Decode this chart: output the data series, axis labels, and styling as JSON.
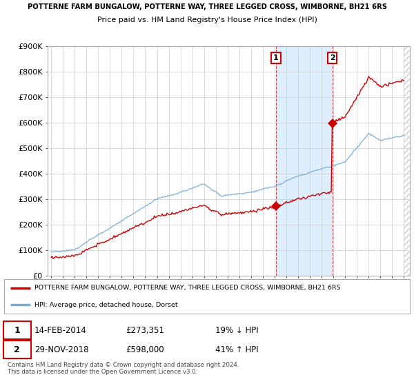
{
  "title_line1": "POTTERNE FARM BUNGALOW, POTTERNE WAY, THREE LEGGED CROSS, WIMBORNE, BH21 6RS",
  "title_line2": "Price paid vs. HM Land Registry's House Price Index (HPI)",
  "ylim": [
    0,
    900000
  ],
  "yticks": [
    0,
    100000,
    200000,
    300000,
    400000,
    500000,
    600000,
    700000,
    800000,
    900000
  ],
  "ytick_labels": [
    "£0",
    "£100K",
    "£200K",
    "£300K",
    "£400K",
    "£500K",
    "£600K",
    "£700K",
    "£800K",
    "£900K"
  ],
  "sale1_year": 2014.12,
  "sale1_price": 273351,
  "sale1_label": "1",
  "sale2_year": 2018.92,
  "sale2_price": 598000,
  "sale2_label": "2",
  "shaded_start": 2014.12,
  "shaded_end": 2018.92,
  "legend_red": "POTTERNE FARM BUNGALOW, POTTERNE WAY, THREE LEGGED CROSS, WIMBORNE, BH21 6RS",
  "legend_blue": "HPI: Average price, detached house, Dorset",
  "table_row1": [
    "1",
    "14-FEB-2014",
    "£273,351",
    "19% ↓ HPI"
  ],
  "table_row2": [
    "2",
    "29-NOV-2018",
    "£598,000",
    "41% ↑ HPI"
  ],
  "footnote": "Contains HM Land Registry data © Crown copyright and database right 2024.\nThis data is licensed under the Open Government Licence v3.0.",
  "red_color": "#cc0000",
  "blue_color": "#7aaed4",
  "shade_color": "#ddeeff",
  "grid_color": "#cccccc",
  "hatch_color": "#cccccc",
  "xlim_start": 1994.7,
  "xlim_end": 2025.5
}
